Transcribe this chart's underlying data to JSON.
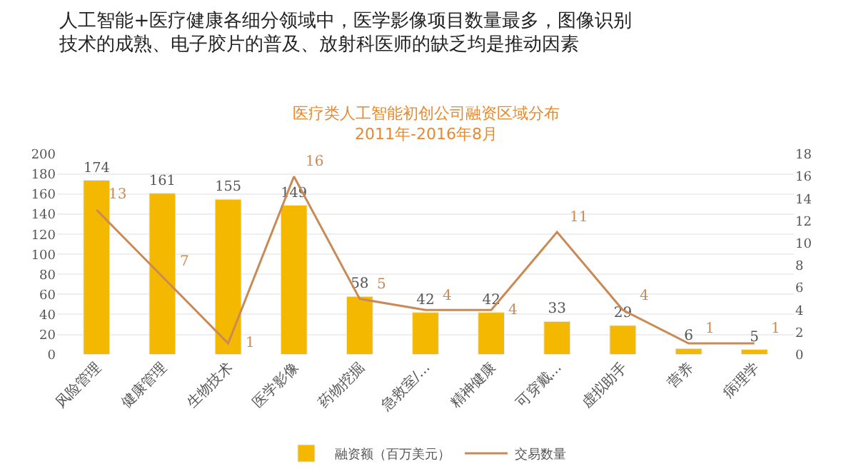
{
  "chart_data": {
    "type": "bar",
    "title": "人工智能+医疗健康各细分领域中，医学影像项目数量最多，图像识别技术的成熟、电子胶片的普及、放射科医师的缺乏均是推动因素",
    "subtitle": "医疗类人工智能初创公司融资区域分布\n2011年-2016年8月",
    "categories": [
      "风险管理",
      "健康管理",
      "生物技术",
      "医学影像",
      "药物挖掘",
      "急救室/...",
      "精神健康",
      "可穿戴...",
      "虚拟助手",
      "营养",
      "病理学"
    ],
    "series": [
      {
        "name": "融资额（百万美元）",
        "color": "#f5b800",
        "values": [
          174,
          161,
          155,
          149,
          58,
          42,
          42,
          33,
          29,
          6,
          5
        ]
      },
      {
        "name": "交易数量",
        "type": "line",
        "axis": "y2",
        "color": "#c98a55",
        "values": [
          13,
          7,
          1,
          16,
          5,
          4,
          4,
          11,
          4,
          1,
          1
        ]
      }
    ],
    "ylim": [
      0,
      200
    ],
    "yticks": [
      0,
      20,
      40,
      60,
      80,
      100,
      120,
      140,
      160,
      180,
      200
    ],
    "y2lim": [
      0,
      18
    ],
    "y2ticks": [
      0,
      2,
      4,
      6,
      8,
      10,
      12,
      14,
      16,
      18
    ],
    "grid": "y",
    "legend": "bottom",
    "marker": "none",
    "line_style": "solid",
    "data_labels": true
  }
}
